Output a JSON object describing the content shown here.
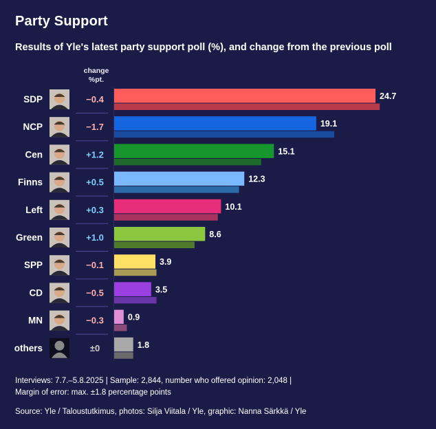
{
  "title": "Party Support",
  "subtitle": "Results of Yle's latest party support poll (%), and change from the previous poll",
  "change_header_line1": "change",
  "change_header_line2": "%pt.",
  "footer": {
    "line1": "Interviews: 7.7.–5.8.2025 | Sample: 2,844, number who offered opinion: 2,048 |",
    "line2": "Margin of error: max. ±1.8 percentage points",
    "source": "Source: Yle / Taloustutkimus, photos: Silja Viitala / Yle, graphic: Nanna Särkkä / Yle"
  },
  "chart_data": {
    "type": "bar",
    "orientation": "horizontal",
    "title": "Party Support",
    "xlim": [
      0,
      26
    ],
    "categories": [
      "SDP",
      "NCP",
      "Cen",
      "Finns",
      "Left",
      "Green",
      "SPP",
      "CD",
      "MN",
      "others"
    ],
    "series": [
      {
        "name": "latest poll",
        "values": [
          24.7,
          19.1,
          15.1,
          12.3,
          10.1,
          8.6,
          3.9,
          3.5,
          0.9,
          1.8
        ],
        "labels": [
          "24.7",
          "19.1",
          "15.1",
          "12.3",
          "10.1",
          "8.6",
          "3.9",
          "3.5",
          "0.9",
          "1.8"
        ]
      },
      {
        "name": "previous poll",
        "values": [
          25.1,
          20.8,
          13.9,
          11.8,
          9.8,
          7.6,
          4.0,
          4.0,
          1.2,
          1.8
        ]
      }
    ],
    "change_labels": [
      "−0.4",
      "−1.7",
      "+1.2",
      "+0.5",
      "+0.3",
      "+1.0",
      "−0.1",
      "−0.5",
      "−0.3",
      "±0"
    ],
    "change_values": [
      -0.4,
      -1.7,
      1.2,
      0.5,
      0.3,
      1.0,
      -0.1,
      -0.5,
      -0.3,
      0
    ],
    "colors": {
      "current": [
        "#ff5c5c",
        "#1565e0",
        "#16962c",
        "#7ab8ff",
        "#e62e7b",
        "#8dc63f",
        "#ffe066",
        "#9b3fe0",
        "#e08fd4",
        "#a8a8a8"
      ],
      "previous": [
        "#b83b4b",
        "#174b9e",
        "#1d6a2c",
        "#2a6ba8",
        "#a8325e",
        "#4f7a2c",
        "#a89a55",
        "#6a35a6",
        "#8a4a7a",
        "#6a6a6a"
      ],
      "change_positive": "#7fd0ff",
      "change_negative": "#ffb0b0",
      "change_zero": "#cccccc"
    },
    "photo_icons": [
      "portrait-icon",
      "portrait-icon",
      "portrait-icon",
      "portrait-icon",
      "portrait-icon",
      "portrait-icon",
      "portrait-icon",
      "portrait-icon",
      "portrait-icon",
      "person-silhouette-icon"
    ]
  }
}
